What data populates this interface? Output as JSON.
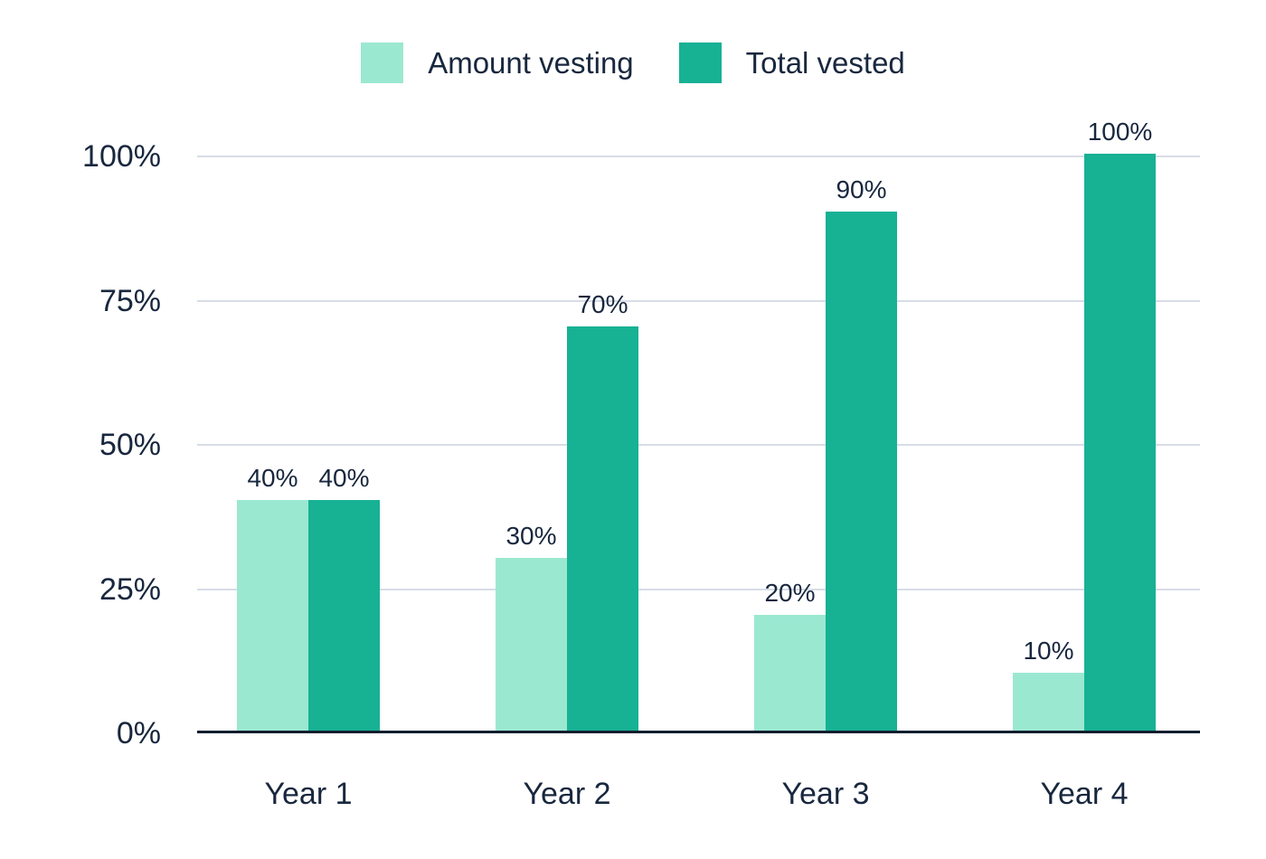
{
  "chart_data": {
    "type": "bar",
    "title": "",
    "categories": [
      "Year 1",
      "Year 2",
      "Year 3",
      "Year 4"
    ],
    "series": [
      {
        "name": "Amount vesting",
        "color": "#9BE8D1",
        "values": [
          40,
          30,
          20,
          10
        ]
      },
      {
        "name": "Total vested",
        "color": "#17B194",
        "values": [
          40,
          70,
          90,
          100
        ]
      }
    ],
    "value_suffix": "%",
    "y_ticks": [
      0,
      25,
      50,
      75,
      100
    ],
    "y_tick_labels": [
      "0%",
      "25%",
      "50%",
      "75%",
      "100%"
    ],
    "ylim": [
      0,
      100
    ],
    "grid": "horizontal",
    "legend_position": "top-center",
    "colors": {
      "text": "#18273E",
      "gridline": "#D7DDE6",
      "axis_line": "#101E2E",
      "background": "#ffffff"
    }
  }
}
